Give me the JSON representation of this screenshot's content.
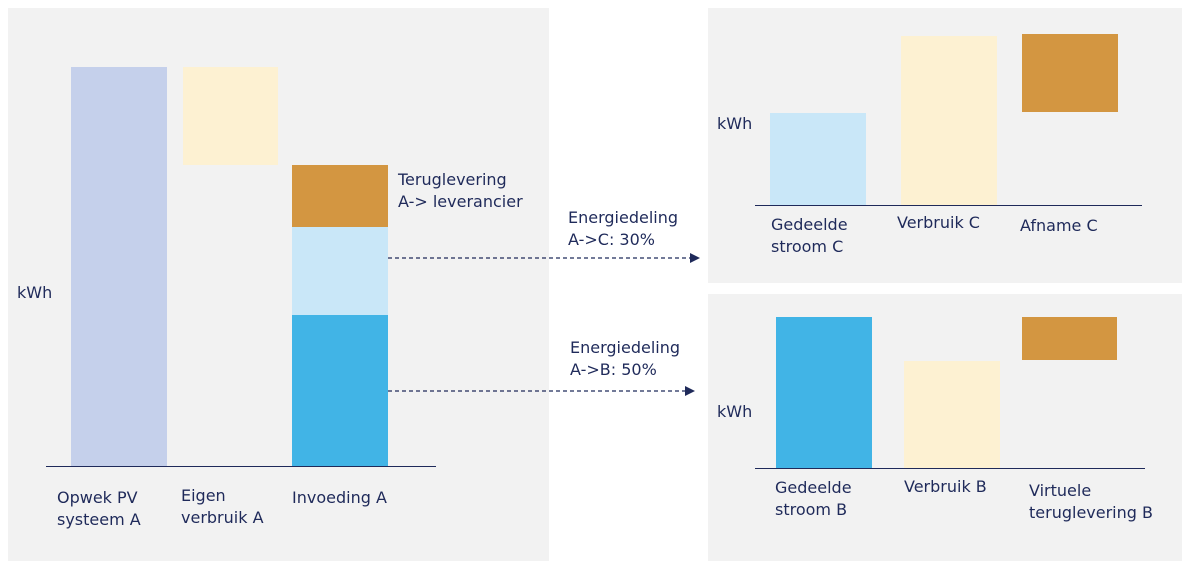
{
  "colors": {
    "pv": "#c5d0eb",
    "eigen": "#fdf1d2",
    "teruglevering": "#d39641",
    "gedeeld_c": "#c9e7f8",
    "gedeeld_b": "#41b4e6",
    "text": "#1f2a5a",
    "panel": "#f2f2f2"
  },
  "panel_a": {
    "ylabel": "kWh",
    "labels": {
      "opwek": "Opwek PV\nsysteem A",
      "eigen": "Eigen\nverbruik A",
      "invoeding": "Invoeding A"
    },
    "annotation": "Teruglevering\nA-> leverancier"
  },
  "arrows": {
    "to_c": "Energiedeling\nA->C: 30%",
    "to_b": "Energiedeling\nA->B: 50%"
  },
  "panel_c": {
    "ylabel": "kWh",
    "labels": {
      "gedeeld": "Gedeelde\nstroom C",
      "verbruik": "Verbruik C",
      "afname": "Afname C"
    }
  },
  "panel_b": {
    "ylabel": "kWh",
    "labels": {
      "gedeeld": "Gedeelde\nstroom B",
      "verbruik": "Verbruik B",
      "virtueel": "Virtuele\nteruglevering B"
    }
  }
}
